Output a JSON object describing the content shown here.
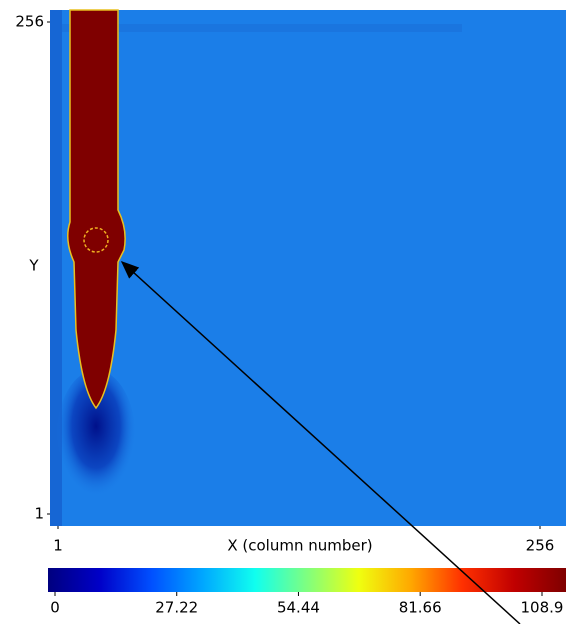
{
  "chart_data": {
    "type": "heatmap",
    "xlabel": "X (column number)",
    "ylabel": "Y",
    "xlim": [
      1,
      256
    ],
    "ylim": [
      1,
      256
    ],
    "xticks": [
      1,
      256
    ],
    "yticks": [
      1,
      256
    ],
    "colorbar": {
      "clim": [
        0,
        108.9
      ],
      "ticks": [
        0,
        27.22,
        54.44,
        81.66,
        108.9
      ],
      "colors": [
        "#00007f",
        "#0000c8",
        "#0050ff",
        "#00a8ff",
        "#10ffef",
        "#7fff7f",
        "#efff10",
        "#ffa800",
        "#ff3000",
        "#c00000",
        "#7f0000"
      ]
    }
  }
}
